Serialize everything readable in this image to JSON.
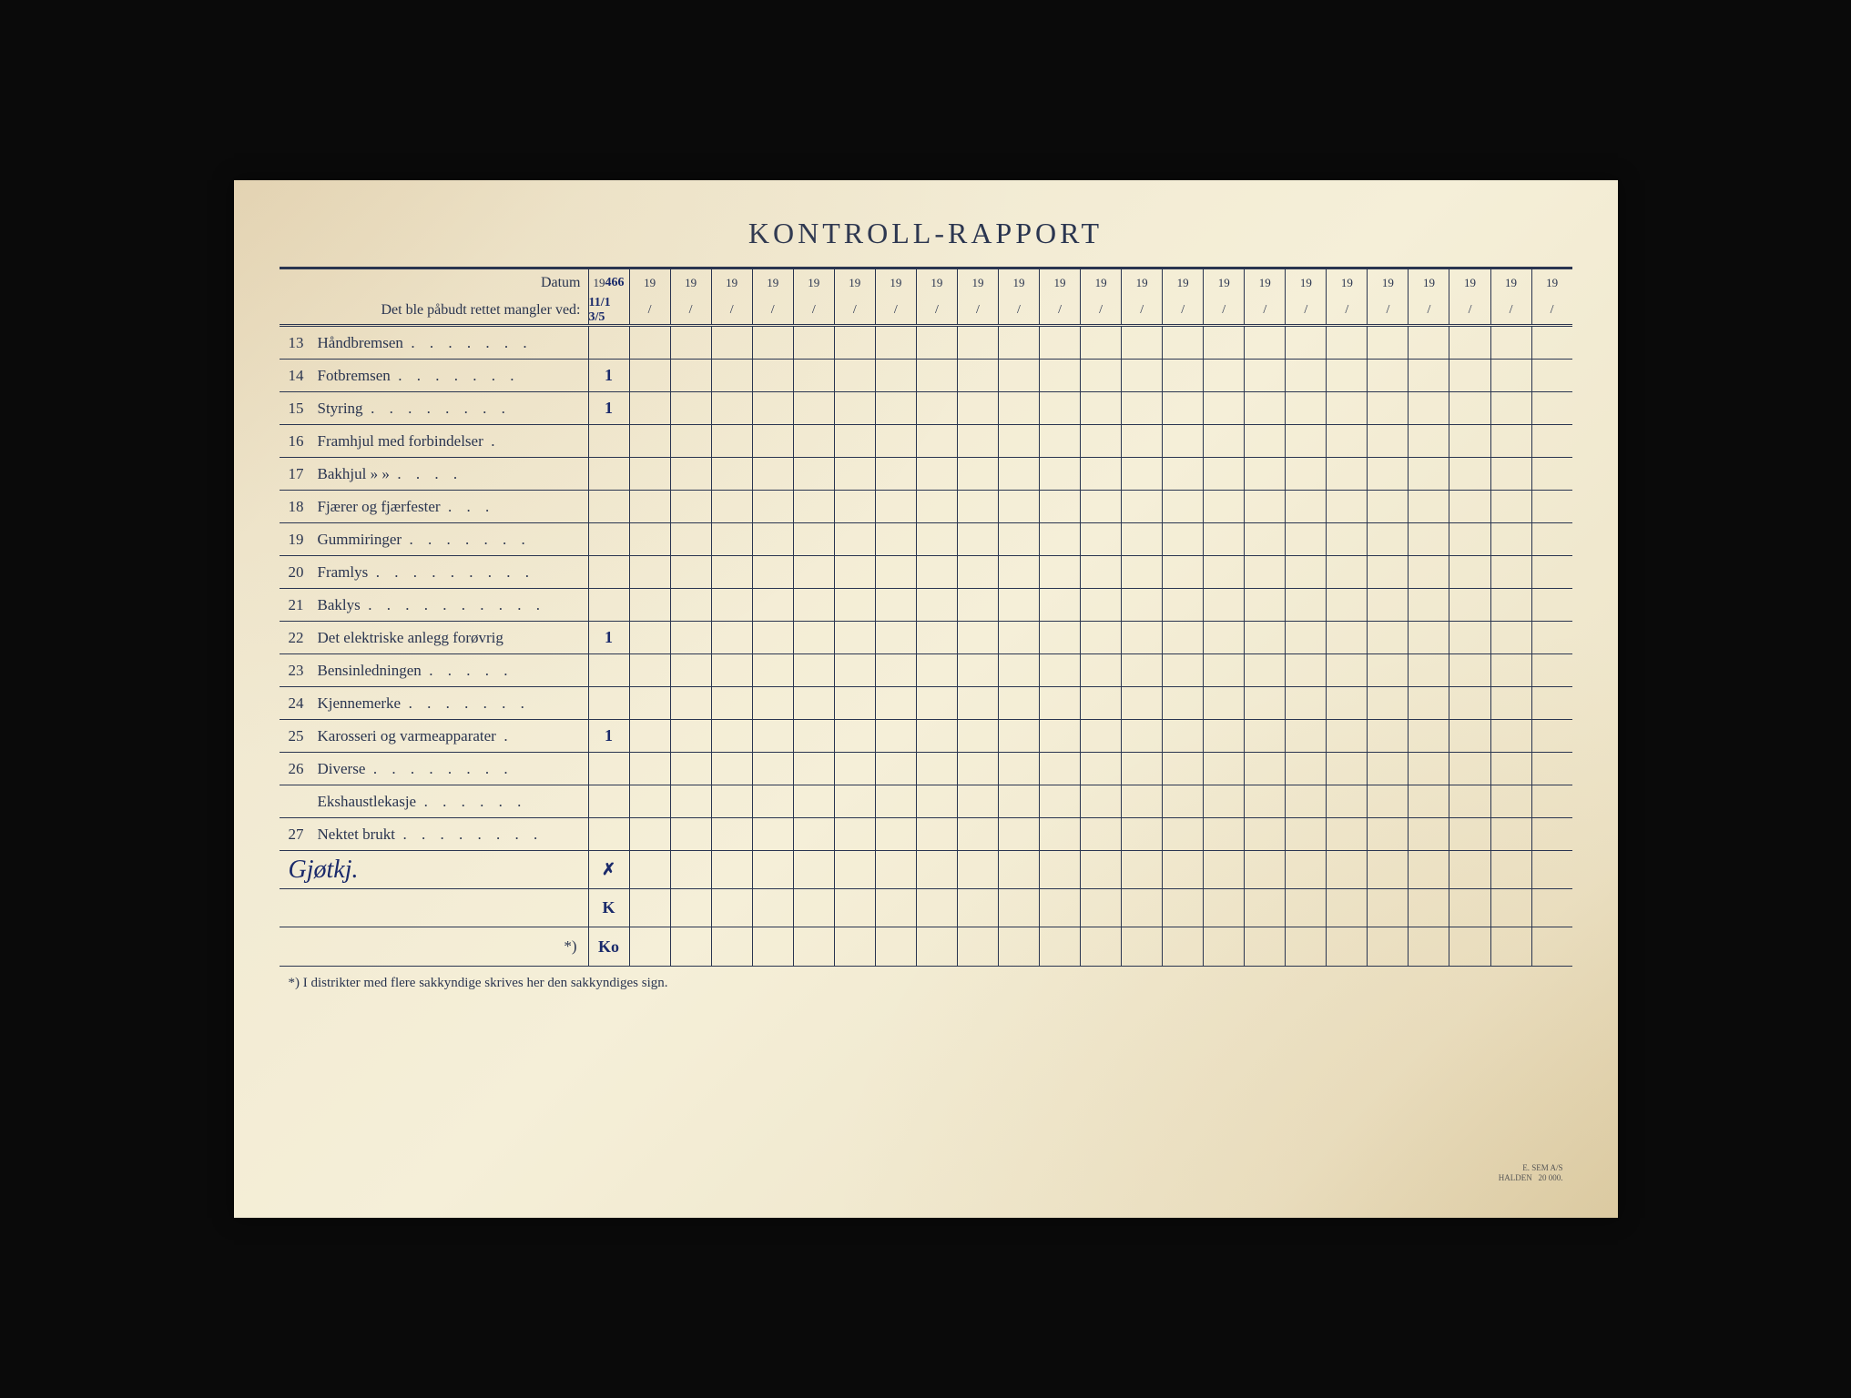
{
  "title": "KONTROLL-RAPPORT",
  "header": {
    "datum_label": "Datum",
    "subheader_label": "Det ble påbudt rettet mangler ved:",
    "year_prefix": "19",
    "first_col_date": "466",
    "first_col_sub": "11/1 3/5",
    "num_columns": 24
  },
  "rows": [
    {
      "num": "13",
      "label": "Håndbremsen",
      "dots": ". . .   . . . .",
      "marks": [
        ""
      ]
    },
    {
      "num": "14",
      "label": "Fotbremsen",
      "dots": ". . . .   . . .",
      "marks": [
        "1"
      ]
    },
    {
      "num": "15",
      "label": "Styring",
      "dots": ". . .   . . . . .",
      "marks": [
        "1"
      ]
    },
    {
      "num": "16",
      "label": "Framhjul med forbindelser",
      "dots": ".",
      "marks": [
        ""
      ]
    },
    {
      "num": "17",
      "label": "Bakhjul     »           »",
      "dots": ". . . .",
      "marks": [
        ""
      ]
    },
    {
      "num": "18",
      "label": "Fjærer og fjærfester",
      "dots": ". . .",
      "marks": [
        ""
      ]
    },
    {
      "num": "19",
      "label": "Gummiringer",
      "dots": ". . .   . . . .",
      "marks": [
        ""
      ]
    },
    {
      "num": "20",
      "label": "Framlys",
      "dots": ". . . . . . . . .",
      "marks": [
        ""
      ]
    },
    {
      "num": "21",
      "label": "Baklys",
      "dots": ". . . . . . . . . .",
      "marks": [
        ""
      ]
    },
    {
      "num": "22",
      "label": "Det elektriske anlegg forøvrig",
      "dots": "",
      "marks": [
        "1"
      ]
    },
    {
      "num": "23",
      "label": "Bensinledningen",
      "dots": ". . . . .",
      "marks": [
        ""
      ]
    },
    {
      "num": "24",
      "label": "Kjennemerke",
      "dots": ". . . .   . . .",
      "marks": [
        ""
      ]
    },
    {
      "num": "25",
      "label": "Karosseri og varmeapparater",
      "dots": ".",
      "marks": [
        "1"
      ]
    },
    {
      "num": "26",
      "label": "Diverse",
      "dots": ". . . .   . . . .",
      "marks": [
        ""
      ]
    },
    {
      "num": "",
      "label": "Ekshaustlekasje",
      "dots": ". . .   . . .",
      "marks": [
        ""
      ]
    },
    {
      "num": "27",
      "label": "Nektet brukt",
      "dots": ". . . . . . . .",
      "marks": [
        ""
      ]
    }
  ],
  "signature_rows": [
    {
      "label_hw": "Gjøtkj.",
      "marks": [
        "✗"
      ]
    },
    {
      "label_hw": "",
      "marks": [
        "K"
      ]
    },
    {
      "label_hw": "*)",
      "marks": [
        "Ko"
      ],
      "label_is_print": true
    }
  ],
  "footnote": "*) I distrikter med flere sakkyndige skrives her den sakkyndiges sign.",
  "printer": {
    "line1": "E. SEM A/S",
    "line2": "HALDEN",
    "qty": "20 000."
  },
  "colors": {
    "ink": "#2a3550",
    "pen": "#1a2a6b",
    "paper_light": "#f5efd8",
    "paper_dark": "#e0d4b0"
  }
}
